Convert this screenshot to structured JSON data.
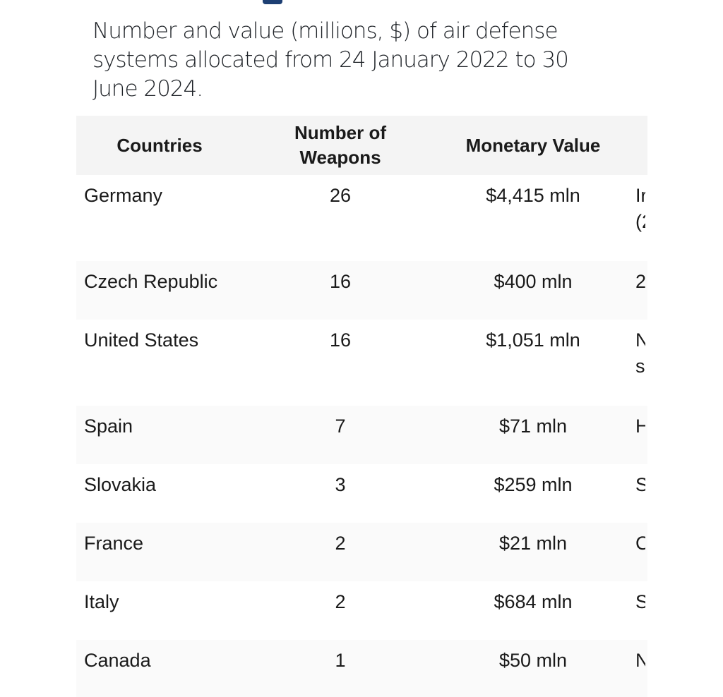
{
  "header": {
    "subtitle": "Number and value (millions, $) of air defense systems allocated from 24 January 2022 to 30 June 2024."
  },
  "table": {
    "columns": [
      "Countries",
      "Number of Weapons",
      "Monetary Value"
    ],
    "rows": [
      {
        "country": "Germany",
        "count": "26",
        "value": "$4,415 mln",
        "note": [
          "Ir",
          "(2"
        ],
        "tall": true
      },
      {
        "country": "Czech Republic",
        "count": "16",
        "value": "$400 mln",
        "note": [
          "2"
        ],
        "tall": false
      },
      {
        "country": "United States",
        "count": "16",
        "value": "$1,051 mln",
        "note": [
          "N",
          "s"
        ],
        "tall": true
      },
      {
        "country": "Spain",
        "count": "7",
        "value": "$71 mln",
        "note": [
          "H"
        ],
        "tall": false
      },
      {
        "country": "Slovakia",
        "count": "3",
        "value": "$259 mln",
        "note": [
          "S"
        ],
        "tall": false
      },
      {
        "country": "France",
        "count": "2",
        "value": "$21 mln",
        "note": [
          "C"
        ],
        "tall": false
      },
      {
        "country": "Italy",
        "count": "2",
        "value": "$684 mln",
        "note": [
          "S"
        ],
        "tall": false
      },
      {
        "country": "Canada",
        "count": "1",
        "value": "$50 mln",
        "note": [
          "N"
        ],
        "tall": false
      }
    ]
  },
  "colors": {
    "accent": "#1d3f73",
    "header_bg": "#f4f4f4",
    "stripe_bg": "#fafafa"
  }
}
